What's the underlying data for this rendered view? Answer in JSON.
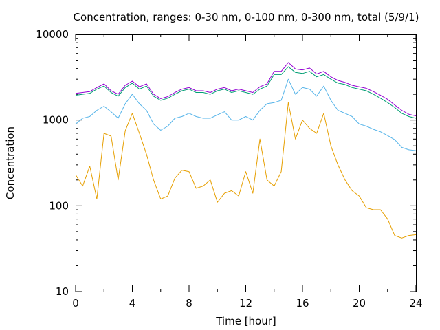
{
  "chart_data": {
    "type": "line",
    "title": "Concentration, ranges: 0-30 nm, 0-100 nm, 0-300 nm, total (5/9/1)",
    "xlabel": "Time [hour]",
    "ylabel": "Concentration",
    "xlim": [
      0,
      24
    ],
    "ylim": [
      10,
      10000
    ],
    "yscale": "log",
    "grid": false,
    "legend": "none",
    "x_ticks": [
      0,
      4,
      8,
      12,
      16,
      20,
      24
    ],
    "x_tick_labels": [
      "0",
      "4",
      "8",
      "12",
      "16",
      "20",
      "24"
    ],
    "y_ticks": [
      10,
      100,
      1000,
      10000
    ],
    "y_tick_labels": [
      "10",
      "100",
      "1000",
      "10000"
    ],
    "x": [
      0,
      0.5,
      1,
      1.5,
      2,
      2.5,
      3,
      3.5,
      4,
      4.5,
      5,
      5.5,
      6,
      6.5,
      7,
      7.5,
      8,
      8.5,
      9,
      9.5,
      10,
      10.5,
      11,
      11.5,
      12,
      12.5,
      13,
      13.5,
      14,
      14.5,
      15,
      15.5,
      16,
      16.5,
      17,
      17.5,
      18,
      18.5,
      19,
      19.5,
      20,
      20.5,
      21,
      21.5,
      22,
      22.5,
      23,
      23.5,
      24
    ],
    "series": [
      {
        "color": "#e69f00",
        "values": [
          230,
          170,
          290,
          120,
          700,
          650,
          200,
          750,
          1200,
          700,
          400,
          200,
          120,
          130,
          210,
          260,
          250,
          160,
          170,
          200,
          110,
          140,
          150,
          130,
          250,
          140,
          600,
          200,
          170,
          250,
          1600,
          600,
          1000,
          800,
          700,
          1200,
          500,
          300,
          200,
          150,
          130,
          95,
          90,
          90,
          70,
          45,
          42,
          45,
          46
        ]
      },
      {
        "color": "#56b4e9",
        "values": [
          900,
          1050,
          1100,
          1300,
          1450,
          1250,
          1050,
          1550,
          2000,
          1550,
          1300,
          900,
          760,
          850,
          1050,
          1100,
          1200,
          1100,
          1050,
          1050,
          1150,
          1250,
          1000,
          1000,
          1100,
          1000,
          1300,
          1550,
          1600,
          1700,
          3000,
          2000,
          2400,
          2300,
          1900,
          2500,
          1700,
          1300,
          1200,
          1100,
          900,
          850,
          780,
          730,
          660,
          590,
          480,
          450,
          440
        ]
      },
      {
        "color": "#009e73",
        "values": [
          1950,
          2000,
          2050,
          2300,
          2500,
          2100,
          1900,
          2400,
          2700,
          2300,
          2500,
          1900,
          1700,
          1800,
          2000,
          2200,
          2300,
          2100,
          2100,
          2000,
          2200,
          2300,
          2100,
          2200,
          2100,
          2000,
          2300,
          2500,
          3400,
          3400,
          4200,
          3600,
          3500,
          3700,
          3200,
          3400,
          3000,
          2700,
          2600,
          2400,
          2300,
          2200,
          2000,
          1800,
          1600,
          1400,
          1200,
          1100,
          1050
        ]
      },
      {
        "color": "#9400d3",
        "values": [
          2050,
          2100,
          2150,
          2400,
          2650,
          2200,
          2000,
          2550,
          2850,
          2450,
          2650,
          2000,
          1780,
          1880,
          2100,
          2300,
          2400,
          2200,
          2200,
          2100,
          2300,
          2400,
          2200,
          2300,
          2200,
          2100,
          2450,
          2650,
          3700,
          3700,
          4700,
          3950,
          3850,
          4050,
          3450,
          3700,
          3200,
          2900,
          2750,
          2550,
          2450,
          2350,
          2150,
          1950,
          1750,
          1500,
          1300,
          1170,
          1120
        ]
      }
    ]
  }
}
